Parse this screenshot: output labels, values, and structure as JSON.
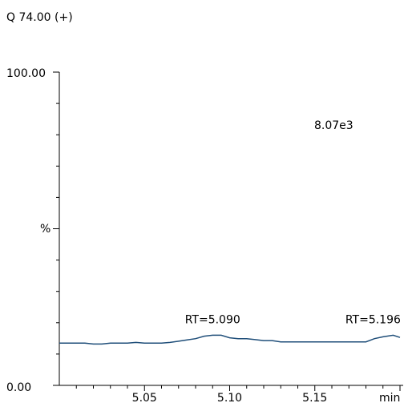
{
  "chart_data": {
    "type": "line",
    "title": "Q 74.00 (+)",
    "intensity_label": "8.07e3",
    "ylabel": "%",
    "xunit": "min",
    "xlim": [
      5.0,
      5.2
    ],
    "ylim": [
      0,
      100
    ],
    "x_ticks": [
      5.05,
      5.1,
      5.15
    ],
    "x_tick_labels": [
      "5.05",
      "5.10",
      "5.15"
    ],
    "y_tick_labels": [
      "0.00",
      "100.00"
    ],
    "grid": false,
    "line_color": "#1f4e79",
    "series": [
      {
        "x": [
          5.0,
          5.01,
          5.015,
          5.02,
          5.025,
          5.03,
          5.035,
          5.04,
          5.045,
          5.05,
          5.055,
          5.06,
          5.065,
          5.07,
          5.075,
          5.08,
          5.085,
          5.09,
          5.095,
          5.1,
          5.105,
          5.11,
          5.115,
          5.12,
          5.125,
          5.13,
          5.135,
          5.14,
          5.145,
          5.15,
          5.155,
          5.16,
          5.165,
          5.17,
          5.175,
          5.18,
          5.185,
          5.19,
          5.196,
          5.2
        ],
        "values": [
          13.5,
          13.5,
          13.5,
          13.2,
          13.2,
          13.5,
          13.5,
          13.5,
          13.7,
          13.5,
          13.5,
          13.5,
          13.7,
          14.1,
          14.5,
          14.9,
          15.7,
          16.0,
          16.0,
          15.2,
          14.9,
          14.9,
          14.6,
          14.3,
          14.3,
          13.9,
          13.9,
          13.9,
          13.9,
          13.9,
          13.9,
          13.9,
          13.9,
          13.9,
          13.9,
          13.9,
          14.9,
          15.5,
          16.0,
          15.3
        ]
      }
    ],
    "annotations": [
      {
        "text": "RT=5.090",
        "x": 5.09,
        "y": 16.0
      },
      {
        "text": "RT=5.196",
        "x": 5.196,
        "y": 16.0
      }
    ]
  }
}
